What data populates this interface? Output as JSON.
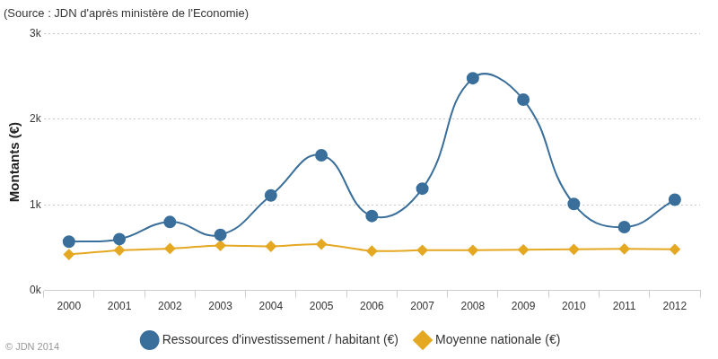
{
  "chart_data": {
    "type": "line",
    "title": "(Source : JDN d'après ministère de l'Economie)",
    "y_label": "Montants (€)",
    "annotations": [
      "© JDN 2014"
    ],
    "categories": [
      "2000",
      "2001",
      "2002",
      "2003",
      "2004",
      "2005",
      "2006",
      "2007",
      "2008",
      "2009",
      "2010",
      "2011",
      "2012"
    ],
    "series": [
      {
        "name": "Ressources d'investissement / habitant (€)",
        "color": "#3a6f9b",
        "marker": "circle",
        "line_style": "smooth",
        "values": [
          570,
          600,
          800,
          650,
          1110,
          1580,
          870,
          1190,
          2480,
          2230,
          1010,
          740,
          1060
        ]
      },
      {
        "name": "Moyenne nationale (€)",
        "color": "#e5a823",
        "marker": "diamond",
        "line_style": "solid",
        "values": [
          420,
          470,
          490,
          525,
          515,
          540,
          460,
          470,
          470,
          475,
          480,
          485,
          480
        ]
      }
    ],
    "ylim": [
      0,
      3000
    ],
    "yticks": [
      {
        "value": 0,
        "label": "0k"
      },
      {
        "value": 1000,
        "label": "1k"
      },
      {
        "value": 2000,
        "label": "2k"
      },
      {
        "value": 3000,
        "label": "3k"
      }
    ],
    "grid": true,
    "legend": "bottom"
  }
}
